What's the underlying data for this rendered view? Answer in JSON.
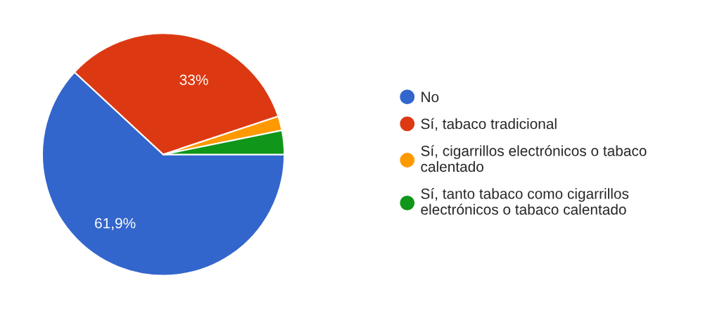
{
  "chart_data": {
    "type": "pie",
    "categories": [
      "No",
      "Sí, tabaco tradicional",
      "Sí, cigarrillos electrónicos o tabaco calentado",
      "Sí, tanto tabaco como cigarrillos electrónicos o tabaco calentado"
    ],
    "values": [
      61.9,
      33,
      1.9,
      3.2
    ],
    "colors": [
      "#3366cc",
      "#dc3912",
      "#ff9900",
      "#109618"
    ],
    "value_labels": [
      "61,9%",
      "33%",
      null,
      null
    ],
    "legend": "right"
  }
}
